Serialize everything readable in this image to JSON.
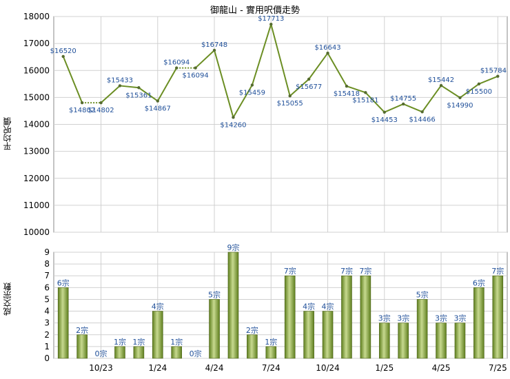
{
  "page": {
    "title": "御龍山 - 實用呎價走勢"
  },
  "colors": {
    "line": "#6b8e23",
    "point": "#556b2f",
    "label": "#1f4f99",
    "grid": "#d0d0d0",
    "bar_dark": "#5f7f1f",
    "bar_light": "#c7d98f"
  },
  "chart_data": [
    {
      "type": "line",
      "title": "御龍山 - 實用呎價走勢",
      "ylabel": "平均呎價",
      "ylim": [
        10000,
        18000
      ],
      "yticks": [
        10000,
        11000,
        12000,
        13000,
        14000,
        15000,
        16000,
        17000,
        18000
      ],
      "grid": true,
      "x_tick_labels": [
        "10/23",
        "1/24",
        "4/24",
        "7/24",
        "10/24",
        "1/25",
        "4/25",
        "7/25"
      ],
      "x_tick_indices": [
        2,
        5,
        8,
        11,
        14,
        17,
        20,
        23
      ],
      "series": [
        {
          "values": [
            16520,
            14802,
            14802,
            15433,
            15361,
            14867,
            16094,
            16094,
            16748,
            14260,
            15459,
            17713,
            15055,
            15677,
            16643,
            15418,
            15181,
            14453,
            14755,
            14466,
            15442,
            14990,
            15500,
            15784
          ],
          "labels": [
            "$16520",
            "$14802",
            "$14802",
            "$15433",
            "$15361",
            "$14867",
            "$16094",
            "$16094",
            "$16748",
            "$14260",
            "$15459",
            "$17713",
            "$15055",
            "$15677",
            "$16643",
            "$15418",
            "$15181",
            "$14453",
            "$14755",
            "$14466",
            "$15442",
            "$14990",
            "$15500",
            "$15784"
          ],
          "carried_forward": [
            false,
            false,
            true,
            false,
            false,
            false,
            false,
            true,
            false,
            false,
            false,
            false,
            false,
            false,
            false,
            false,
            false,
            false,
            false,
            false,
            false,
            false,
            false,
            false
          ]
        }
      ]
    },
    {
      "type": "bar",
      "ylabel": "成交宗數",
      "ylim": [
        0,
        9
      ],
      "yticks": [
        0,
        1,
        2,
        3,
        4,
        5,
        6,
        7,
        8,
        9
      ],
      "grid": true,
      "x_tick_labels": [
        "10/23",
        "1/24",
        "4/24",
        "7/24",
        "10/24",
        "1/25",
        "4/25",
        "7/25"
      ],
      "x_tick_indices": [
        2,
        5,
        8,
        11,
        14,
        17,
        20,
        23
      ],
      "values": [
        6,
        2,
        0,
        1,
        1,
        4,
        1,
        0,
        5,
        9,
        2,
        1,
        7,
        4,
        4,
        7,
        7,
        3,
        3,
        5,
        3,
        3,
        6,
        7
      ],
      "labels": [
        "6宗",
        "2宗",
        "0宗",
        "1宗",
        "1宗",
        "4宗",
        "1宗",
        "0宗",
        "5宗",
        "9宗",
        "2宗",
        "1宗",
        "7宗",
        "4宗",
        "4宗",
        "7宗",
        "7宗",
        "3宗",
        "3宗",
        "5宗",
        "3宗",
        "3宗",
        "6宗",
        "7宗"
      ]
    }
  ]
}
